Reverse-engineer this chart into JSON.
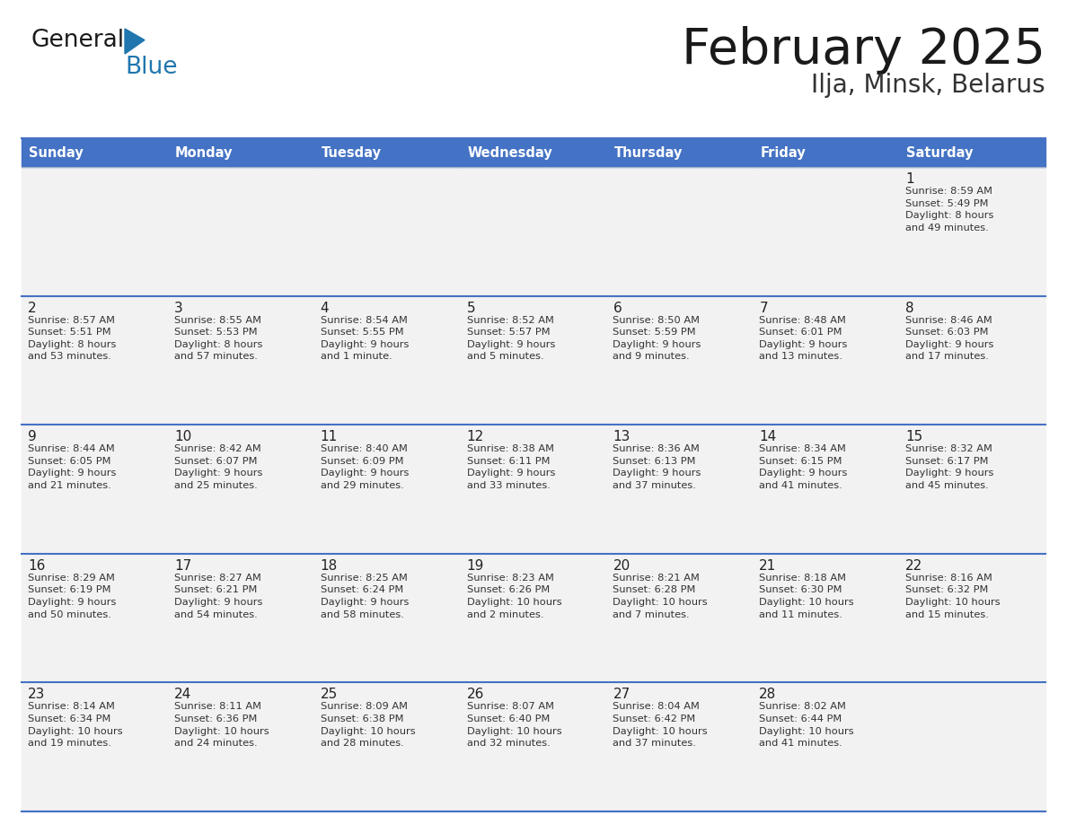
{
  "title": "February 2025",
  "subtitle": "Ilja, Minsk, Belarus",
  "header_bg": "#4472C4",
  "header_text_color": "#FFFFFF",
  "cell_bg": "#F2F2F2",
  "day_headers": [
    "Sunday",
    "Monday",
    "Tuesday",
    "Wednesday",
    "Thursday",
    "Friday",
    "Saturday"
  ],
  "title_color": "#1a1a1a",
  "subtitle_color": "#333333",
  "day_number_color": "#222222",
  "info_color": "#333333",
  "divider_color": "#4472C4",
  "calendar_data": [
    [
      {
        "day": "",
        "info": ""
      },
      {
        "day": "",
        "info": ""
      },
      {
        "day": "",
        "info": ""
      },
      {
        "day": "",
        "info": ""
      },
      {
        "day": "",
        "info": ""
      },
      {
        "day": "",
        "info": ""
      },
      {
        "day": "1",
        "info": "Sunrise: 8:59 AM\nSunset: 5:49 PM\nDaylight: 8 hours\nand 49 minutes."
      }
    ],
    [
      {
        "day": "2",
        "info": "Sunrise: 8:57 AM\nSunset: 5:51 PM\nDaylight: 8 hours\nand 53 minutes."
      },
      {
        "day": "3",
        "info": "Sunrise: 8:55 AM\nSunset: 5:53 PM\nDaylight: 8 hours\nand 57 minutes."
      },
      {
        "day": "4",
        "info": "Sunrise: 8:54 AM\nSunset: 5:55 PM\nDaylight: 9 hours\nand 1 minute."
      },
      {
        "day": "5",
        "info": "Sunrise: 8:52 AM\nSunset: 5:57 PM\nDaylight: 9 hours\nand 5 minutes."
      },
      {
        "day": "6",
        "info": "Sunrise: 8:50 AM\nSunset: 5:59 PM\nDaylight: 9 hours\nand 9 minutes."
      },
      {
        "day": "7",
        "info": "Sunrise: 8:48 AM\nSunset: 6:01 PM\nDaylight: 9 hours\nand 13 minutes."
      },
      {
        "day": "8",
        "info": "Sunrise: 8:46 AM\nSunset: 6:03 PM\nDaylight: 9 hours\nand 17 minutes."
      }
    ],
    [
      {
        "day": "9",
        "info": "Sunrise: 8:44 AM\nSunset: 6:05 PM\nDaylight: 9 hours\nand 21 minutes."
      },
      {
        "day": "10",
        "info": "Sunrise: 8:42 AM\nSunset: 6:07 PM\nDaylight: 9 hours\nand 25 minutes."
      },
      {
        "day": "11",
        "info": "Sunrise: 8:40 AM\nSunset: 6:09 PM\nDaylight: 9 hours\nand 29 minutes."
      },
      {
        "day": "12",
        "info": "Sunrise: 8:38 AM\nSunset: 6:11 PM\nDaylight: 9 hours\nand 33 minutes."
      },
      {
        "day": "13",
        "info": "Sunrise: 8:36 AM\nSunset: 6:13 PM\nDaylight: 9 hours\nand 37 minutes."
      },
      {
        "day": "14",
        "info": "Sunrise: 8:34 AM\nSunset: 6:15 PM\nDaylight: 9 hours\nand 41 minutes."
      },
      {
        "day": "15",
        "info": "Sunrise: 8:32 AM\nSunset: 6:17 PM\nDaylight: 9 hours\nand 45 minutes."
      }
    ],
    [
      {
        "day": "16",
        "info": "Sunrise: 8:29 AM\nSunset: 6:19 PM\nDaylight: 9 hours\nand 50 minutes."
      },
      {
        "day": "17",
        "info": "Sunrise: 8:27 AM\nSunset: 6:21 PM\nDaylight: 9 hours\nand 54 minutes."
      },
      {
        "day": "18",
        "info": "Sunrise: 8:25 AM\nSunset: 6:24 PM\nDaylight: 9 hours\nand 58 minutes."
      },
      {
        "day": "19",
        "info": "Sunrise: 8:23 AM\nSunset: 6:26 PM\nDaylight: 10 hours\nand 2 minutes."
      },
      {
        "day": "20",
        "info": "Sunrise: 8:21 AM\nSunset: 6:28 PM\nDaylight: 10 hours\nand 7 minutes."
      },
      {
        "day": "21",
        "info": "Sunrise: 8:18 AM\nSunset: 6:30 PM\nDaylight: 10 hours\nand 11 minutes."
      },
      {
        "day": "22",
        "info": "Sunrise: 8:16 AM\nSunset: 6:32 PM\nDaylight: 10 hours\nand 15 minutes."
      }
    ],
    [
      {
        "day": "23",
        "info": "Sunrise: 8:14 AM\nSunset: 6:34 PM\nDaylight: 10 hours\nand 19 minutes."
      },
      {
        "day": "24",
        "info": "Sunrise: 8:11 AM\nSunset: 6:36 PM\nDaylight: 10 hours\nand 24 minutes."
      },
      {
        "day": "25",
        "info": "Sunrise: 8:09 AM\nSunset: 6:38 PM\nDaylight: 10 hours\nand 28 minutes."
      },
      {
        "day": "26",
        "info": "Sunrise: 8:07 AM\nSunset: 6:40 PM\nDaylight: 10 hours\nand 32 minutes."
      },
      {
        "day": "27",
        "info": "Sunrise: 8:04 AM\nSunset: 6:42 PM\nDaylight: 10 hours\nand 37 minutes."
      },
      {
        "day": "28",
        "info": "Sunrise: 8:02 AM\nSunset: 6:44 PM\nDaylight: 10 hours\nand 41 minutes."
      },
      {
        "day": "",
        "info": ""
      }
    ]
  ],
  "logo_general_color": "#1a1a1a",
  "logo_blue_color": "#2176AE"
}
